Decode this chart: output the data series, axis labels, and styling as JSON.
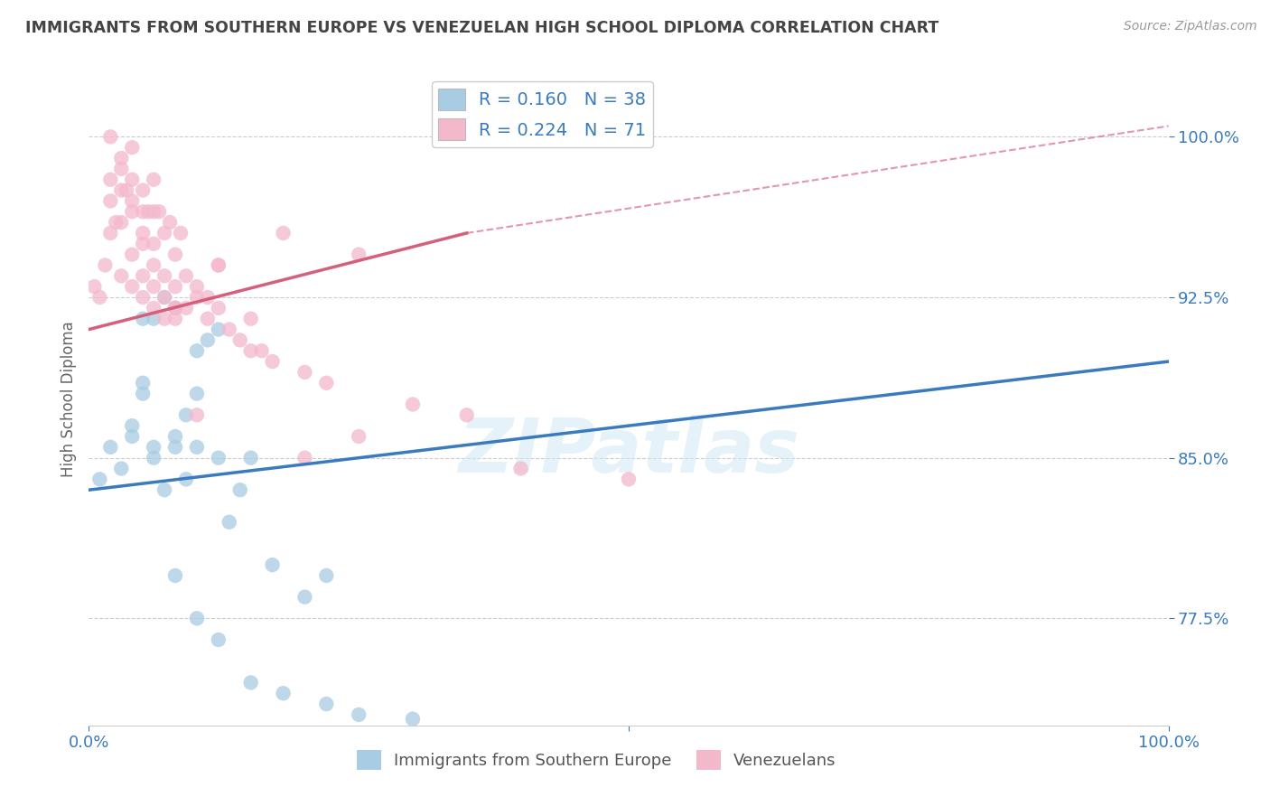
{
  "title": "IMMIGRANTS FROM SOUTHERN EUROPE VS VENEZUELAN HIGH SCHOOL DIPLOMA CORRELATION CHART",
  "source": "Source: ZipAtlas.com",
  "ylabel": "High School Diploma",
  "xlim": [
    0,
    100
  ],
  "ylim": [
    72.5,
    103.0
  ],
  "yticks": [
    77.5,
    85.0,
    92.5,
    100.0
  ],
  "ytick_labels": [
    "77.5%",
    "85.0%",
    "92.5%",
    "100.0%"
  ],
  "xticks": [
    0,
    50,
    100
  ],
  "xtick_labels": [
    "0.0%",
    "",
    "100.0%"
  ],
  "watermark": "ZIPatlas",
  "legend_blue_label": "R = 0.160   N = 38",
  "legend_pink_label": "R = 0.224   N = 71",
  "legend_bottom_blue": "Immigrants from Southern Europe",
  "legend_bottom_pink": "Venezuelans",
  "blue_color": "#a8cce4",
  "pink_color": "#f4b8cb",
  "blue_line_color": "#3a7bbf",
  "pink_line_color": "#d4607a",
  "axis_label_color": "#3a7bbf",
  "blue_scatter_x": [
    1,
    2,
    3,
    4,
    5,
    6,
    7,
    8,
    9,
    10,
    11,
    12,
    13,
    15,
    17,
    20,
    22,
    6,
    7,
    8,
    9,
    10,
    5,
    6,
    8,
    10,
    12,
    14,
    4,
    5,
    8,
    10,
    12,
    15,
    18,
    22,
    25,
    30
  ],
  "blue_scatter_y": [
    84.0,
    85.5,
    84.5,
    86.0,
    88.0,
    91.5,
    92.5,
    85.5,
    87.0,
    88.0,
    90.5,
    91.0,
    82.0,
    85.0,
    80.0,
    78.5,
    79.5,
    85.5,
    83.5,
    86.0,
    84.0,
    85.5,
    91.5,
    85.0,
    92.0,
    90.0,
    85.0,
    83.5,
    86.5,
    88.5,
    79.5,
    77.5,
    76.5,
    74.5,
    74.0,
    73.5,
    73.0,
    72.8
  ],
  "pink_scatter_x": [
    0.5,
    1,
    1.5,
    2,
    2,
    2.5,
    3,
    3,
    3.5,
    4,
    4,
    4,
    5,
    5,
    5,
    5.5,
    6,
    6,
    6,
    6.5,
    7,
    7,
    7,
    7.5,
    8,
    8,
    8,
    8.5,
    9,
    9,
    10,
    10,
    11,
    11,
    12,
    12,
    13,
    14,
    15,
    16,
    17,
    18,
    20,
    22,
    25,
    30,
    35,
    2,
    3,
    4,
    5,
    6,
    7,
    8,
    3,
    4,
    5,
    6,
    2,
    3,
    4,
    5,
    6,
    8,
    10,
    12,
    15,
    20,
    25,
    40,
    50
  ],
  "pink_scatter_y": [
    93.0,
    92.5,
    94.0,
    97.0,
    95.5,
    96.0,
    96.0,
    93.5,
    97.5,
    94.5,
    93.0,
    97.0,
    95.0,
    93.5,
    92.5,
    96.5,
    94.0,
    93.0,
    92.0,
    96.5,
    93.5,
    92.5,
    91.5,
    96.0,
    93.0,
    92.0,
    91.5,
    95.5,
    93.5,
    92.0,
    93.0,
    92.5,
    92.5,
    91.5,
    94.0,
    92.0,
    91.0,
    90.5,
    91.5,
    90.0,
    89.5,
    95.5,
    89.0,
    88.5,
    94.5,
    87.5,
    87.0,
    98.0,
    97.5,
    96.5,
    95.5,
    95.0,
    95.5,
    94.5,
    99.0,
    99.5,
    96.5,
    96.5,
    100.0,
    98.5,
    98.0,
    97.5,
    98.0,
    92.0,
    87.0,
    94.0,
    90.0,
    85.0,
    86.0,
    84.5,
    84.0
  ],
  "blue_trend_x0": 0,
  "blue_trend_x1": 100,
  "blue_trend_y0": 83.5,
  "blue_trend_y1": 89.5,
  "pink_solid_x0": 0,
  "pink_solid_x1": 35,
  "pink_solid_y0": 91.0,
  "pink_solid_y1": 95.5,
  "pink_dashed_x0": 35,
  "pink_dashed_x1": 100,
  "pink_dashed_y0": 95.5,
  "pink_dashed_y1": 100.5,
  "grid_color": "#cccccc",
  "background_color": "#ffffff"
}
